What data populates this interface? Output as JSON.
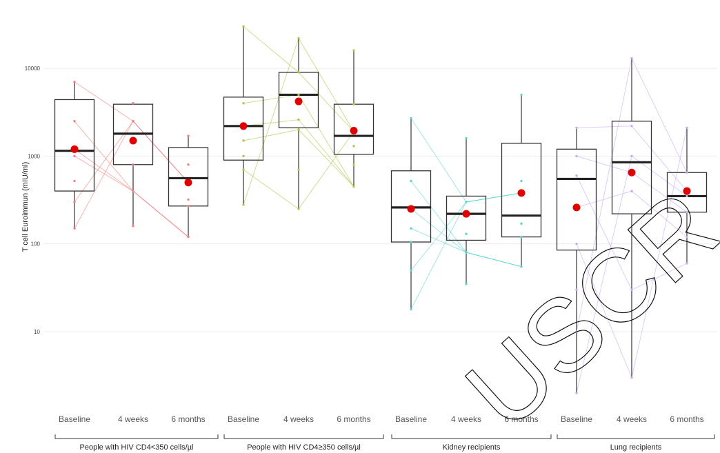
{
  "chart_data": {
    "type": "box",
    "ylabel": "T cell Euroimmun (mIU/ml)",
    "yscale": "log10",
    "ylim": [
      1,
      50000
    ],
    "yticks": [
      10,
      100,
      1000,
      10000
    ],
    "ytick_labels": [
      "10",
      "100",
      "1000",
      "10000"
    ],
    "grid": true,
    "categories": [
      "Baseline",
      "4 weeks",
      "6 months"
    ],
    "groups": [
      {
        "name": "People with HIV CD4<350 cells/µl",
        "color": "#f08080",
        "boxes": [
          {
            "category": "Baseline",
            "min": 150,
            "q1": 400,
            "median": 1150,
            "q3": 4400,
            "max": 7000,
            "mean": 1200,
            "points": [
              7000,
              2500,
              1200,
              1000,
              520,
              300,
              150
            ]
          },
          {
            "category": "4 weeks",
            "min": 160,
            "q1": 800,
            "median": 1800,
            "q3": 3900,
            "max": 4000,
            "mean": 1500,
            "points": [
              4000,
              2500,
              1500,
              800,
              400,
              160
            ]
          },
          {
            "category": "6 months",
            "min": 120,
            "q1": 270,
            "median": 560,
            "q3": 1250,
            "max": 1700,
            "mean": 500,
            "points": [
              1700,
              800,
              500,
              320,
              270,
              120
            ]
          }
        ]
      },
      {
        "name": "People with HIV CD4≥350 cells/µl",
        "color": "#a8c94a",
        "boxes": [
          {
            "category": "Baseline",
            "min": 280,
            "q1": 900,
            "median": 2200,
            "q3": 4700,
            "max": 30000,
            "mean": 2200,
            "points": [
              30000,
              4000,
              2200,
              1500,
              1000,
              700,
              280
            ]
          },
          {
            "category": "4 weeks",
            "min": 250,
            "q1": 2100,
            "median": 5000,
            "q3": 9000,
            "max": 22000,
            "mean": 4200,
            "points": [
              22000,
              9000,
              5000,
              2600,
              2000,
              700,
              250
            ]
          },
          {
            "category": "6 months",
            "min": 450,
            "q1": 1050,
            "median": 1700,
            "q3": 3900,
            "max": 16000,
            "mean": 1950,
            "points": [
              16000,
              3900,
              1900,
              1300,
              800,
              450
            ]
          }
        ]
      },
      {
        "name": "Kidney recipients",
        "color": "#5fd3d3",
        "boxes": [
          {
            "category": "Baseline",
            "min": 18,
            "q1": 105,
            "median": 260,
            "q3": 680,
            "max": 2700,
            "mean": 250,
            "points": [
              2700,
              520,
              250,
              150,
              105,
              50,
              18
            ]
          },
          {
            "category": "4 weeks",
            "min": 35,
            "q1": 110,
            "median": 220,
            "q3": 350,
            "max": 1600,
            "mean": 220,
            "points": [
              1600,
              300,
              220,
              130,
              80,
              35
            ]
          },
          {
            "category": "6 months",
            "min": 55,
            "q1": 120,
            "median": 210,
            "q3": 1400,
            "max": 5000,
            "mean": 380,
            "points": [
              5000,
              520,
              380,
              170,
              120,
              55
            ]
          }
        ]
      },
      {
        "name": "Lung recipients",
        "color": "#c9a8f0",
        "boxes": [
          {
            "category": "Baseline",
            "min": 2,
            "q1": 85,
            "median": 550,
            "q3": 1200,
            "max": 2100,
            "mean": 260,
            "points": [
              2100,
              1000,
              600,
              260,
              100,
              30,
              10,
              2
            ]
          },
          {
            "category": "4 weeks",
            "min": 3,
            "q1": 220,
            "median": 850,
            "q3": 2500,
            "max": 13000,
            "mean": 650,
            "points": [
              13000,
              2200,
              1000,
              650,
              400,
              30,
              3
            ]
          },
          {
            "category": "6 months",
            "min": 60,
            "q1": 230,
            "median": 350,
            "q3": 650,
            "max": 2100,
            "mean": 400,
            "points": [
              2100,
              650,
              400,
              350,
              230,
              120,
              60
            ]
          }
        ]
      }
    ],
    "mean_marker_color": "#e00000"
  },
  "watermark": "USCR"
}
